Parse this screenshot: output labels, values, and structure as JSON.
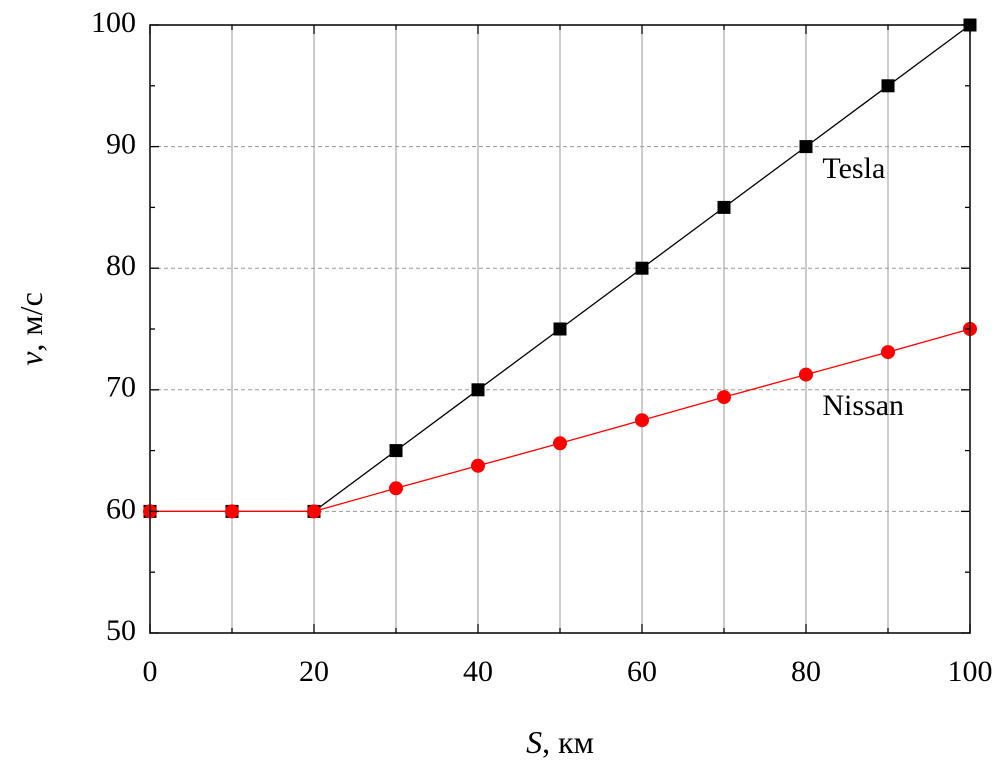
{
  "chart_data": {
    "type": "line",
    "xlabel_var": "S",
    "xlabel_unit": ", км",
    "ylabel_var": "v",
    "ylabel_unit": ", м/с",
    "xlim": [
      0,
      100
    ],
    "ylim": [
      50,
      100
    ],
    "xticks": [
      0,
      20,
      40,
      60,
      80,
      100
    ],
    "yticks": [
      50,
      60,
      70,
      80,
      90,
      100
    ],
    "x_minor_step": 10,
    "y_minor_step": 5,
    "grid": "vertical solid at major and 10-unit x positions; horizontal dashed at major y ticks",
    "series": [
      {
        "name": "Tesla",
        "color": "#000000",
        "marker": "square",
        "x": [
          0,
          10,
          20,
          30,
          40,
          50,
          60,
          70,
          80,
          90,
          100
        ],
        "values": [
          60,
          60,
          60,
          65,
          70,
          75,
          80,
          85,
          90,
          95,
          100
        ],
        "label_at": [
          82,
          88
        ]
      },
      {
        "name": "Nissan",
        "color": "#ff0000",
        "marker": "circle",
        "x": [
          0,
          10,
          20,
          30,
          40,
          50,
          60,
          70,
          80,
          90,
          100
        ],
        "values": [
          60,
          60,
          60,
          61.9,
          63.75,
          65.6,
          67.5,
          69.4,
          71.25,
          73.1,
          75
        ],
        "label_at": [
          82,
          68.5
        ]
      }
    ]
  }
}
